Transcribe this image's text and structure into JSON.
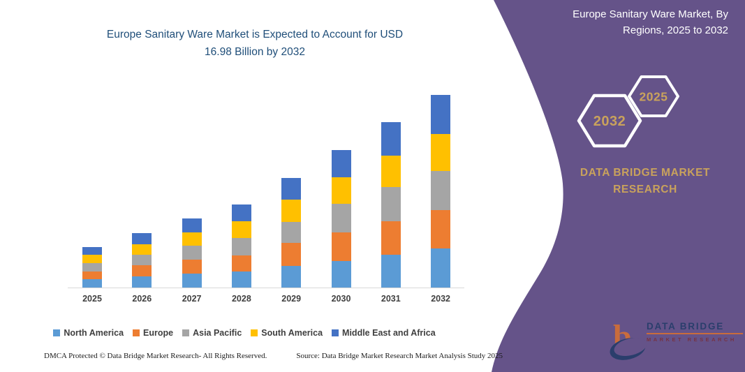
{
  "chart": {
    "title_line1": "Europe Sanitary Ware Market is Expected to Account for USD",
    "title_line2": "16.98 Billion by 2032",
    "title_color": "#1F4E79"
  },
  "chart_data": {
    "type": "bar",
    "stacked": true,
    "title": "Europe Sanitary Ware Market is Expected to Account for USD 16.98 Billion by 2032",
    "categories": [
      "2025",
      "2026",
      "2027",
      "2028",
      "2029",
      "2030",
      "2031",
      "2032"
    ],
    "series": [
      {
        "name": "North America",
        "color": "#5B9BD5",
        "values": [
          0.75,
          1.0,
          1.26,
          1.42,
          1.92,
          2.33,
          2.89,
          3.42
        ]
      },
      {
        "name": "Europe",
        "color": "#ED7D31",
        "values": [
          0.68,
          0.95,
          1.2,
          1.4,
          2.04,
          2.55,
          2.94,
          3.43
        ]
      },
      {
        "name": "Asia Pacific",
        "color": "#A5A5A5",
        "values": [
          0.7,
          0.93,
          1.21,
          1.52,
          1.84,
          2.5,
          3.0,
          3.43
        ]
      },
      {
        "name": "South America",
        "color": "#FFC000",
        "values": [
          0.73,
          0.94,
          1.22,
          1.5,
          1.99,
          2.37,
          2.79,
          3.29
        ]
      },
      {
        "name": "Middle East and Africa",
        "color": "#4472C4",
        "values": [
          0.69,
          0.98,
          1.21,
          1.51,
          1.91,
          2.35,
          2.98,
          3.41
        ]
      }
    ],
    "totals": [
      3.55,
      4.8,
      6.1,
      7.35,
      9.7,
      12.1,
      14.6,
      16.98
    ],
    "units": "USD Billion",
    "ylim": [
      0,
      17
    ],
    "grid": false,
    "y_axis_visible": false,
    "legend_position": "bottom"
  },
  "footer": {
    "dmca": "DMCA Protected © Data Bridge Market Research-  All Rights Reserved.",
    "source": "Source: Data Bridge Market Research  Market Analysis Study 2025"
  },
  "panel": {
    "bg_color": "#655389",
    "title_line1": "Europe Sanitary Ware Market, By",
    "title_line2": "Regions, 2025 to 2032",
    "hexagon_back_label": "2032",
    "hexagon_front_label": "2025",
    "hexagon_text_color": "#C9A25C",
    "brand_line1": "DATA BRIDGE MARKET",
    "brand_line2": "RESEARCH"
  },
  "logo": {
    "name": "DATA BRIDGE",
    "sub": "MARKET RESEARCH"
  }
}
